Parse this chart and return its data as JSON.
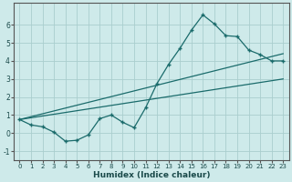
{
  "xlabel": "Humidex (Indice chaleur)",
  "background_color": "#ceeaea",
  "grid_color": "#aacece",
  "line_color": "#1a6b6b",
  "xlim": [
    -0.5,
    23.5
  ],
  "ylim": [
    -1.5,
    7.2
  ],
  "yticks": [
    -1,
    0,
    1,
    2,
    3,
    4,
    5,
    6
  ],
  "xticks": [
    0,
    1,
    2,
    3,
    4,
    5,
    6,
    7,
    8,
    9,
    10,
    11,
    12,
    13,
    14,
    15,
    16,
    17,
    18,
    19,
    20,
    21,
    22,
    23
  ],
  "series1_x": [
    0,
    1,
    2,
    3,
    4,
    5,
    6,
    7,
    8,
    9,
    10,
    11,
    12,
    13,
    14,
    15,
    16,
    17,
    18,
    19,
    20,
    21,
    22,
    23
  ],
  "series1_y": [
    0.75,
    0.45,
    0.35,
    0.05,
    -0.45,
    -0.4,
    -0.1,
    0.8,
    1.0,
    0.6,
    0.3,
    1.4,
    2.75,
    3.8,
    4.7,
    5.7,
    6.55,
    6.05,
    5.4,
    5.35,
    4.6,
    4.35,
    4.0,
    4.0
  ],
  "series2_x": [
    0,
    23
  ],
  "series2_y": [
    0.75,
    4.4
  ],
  "series3_x": [
    0,
    23
  ],
  "series3_y": [
    0.75,
    3.0
  ]
}
